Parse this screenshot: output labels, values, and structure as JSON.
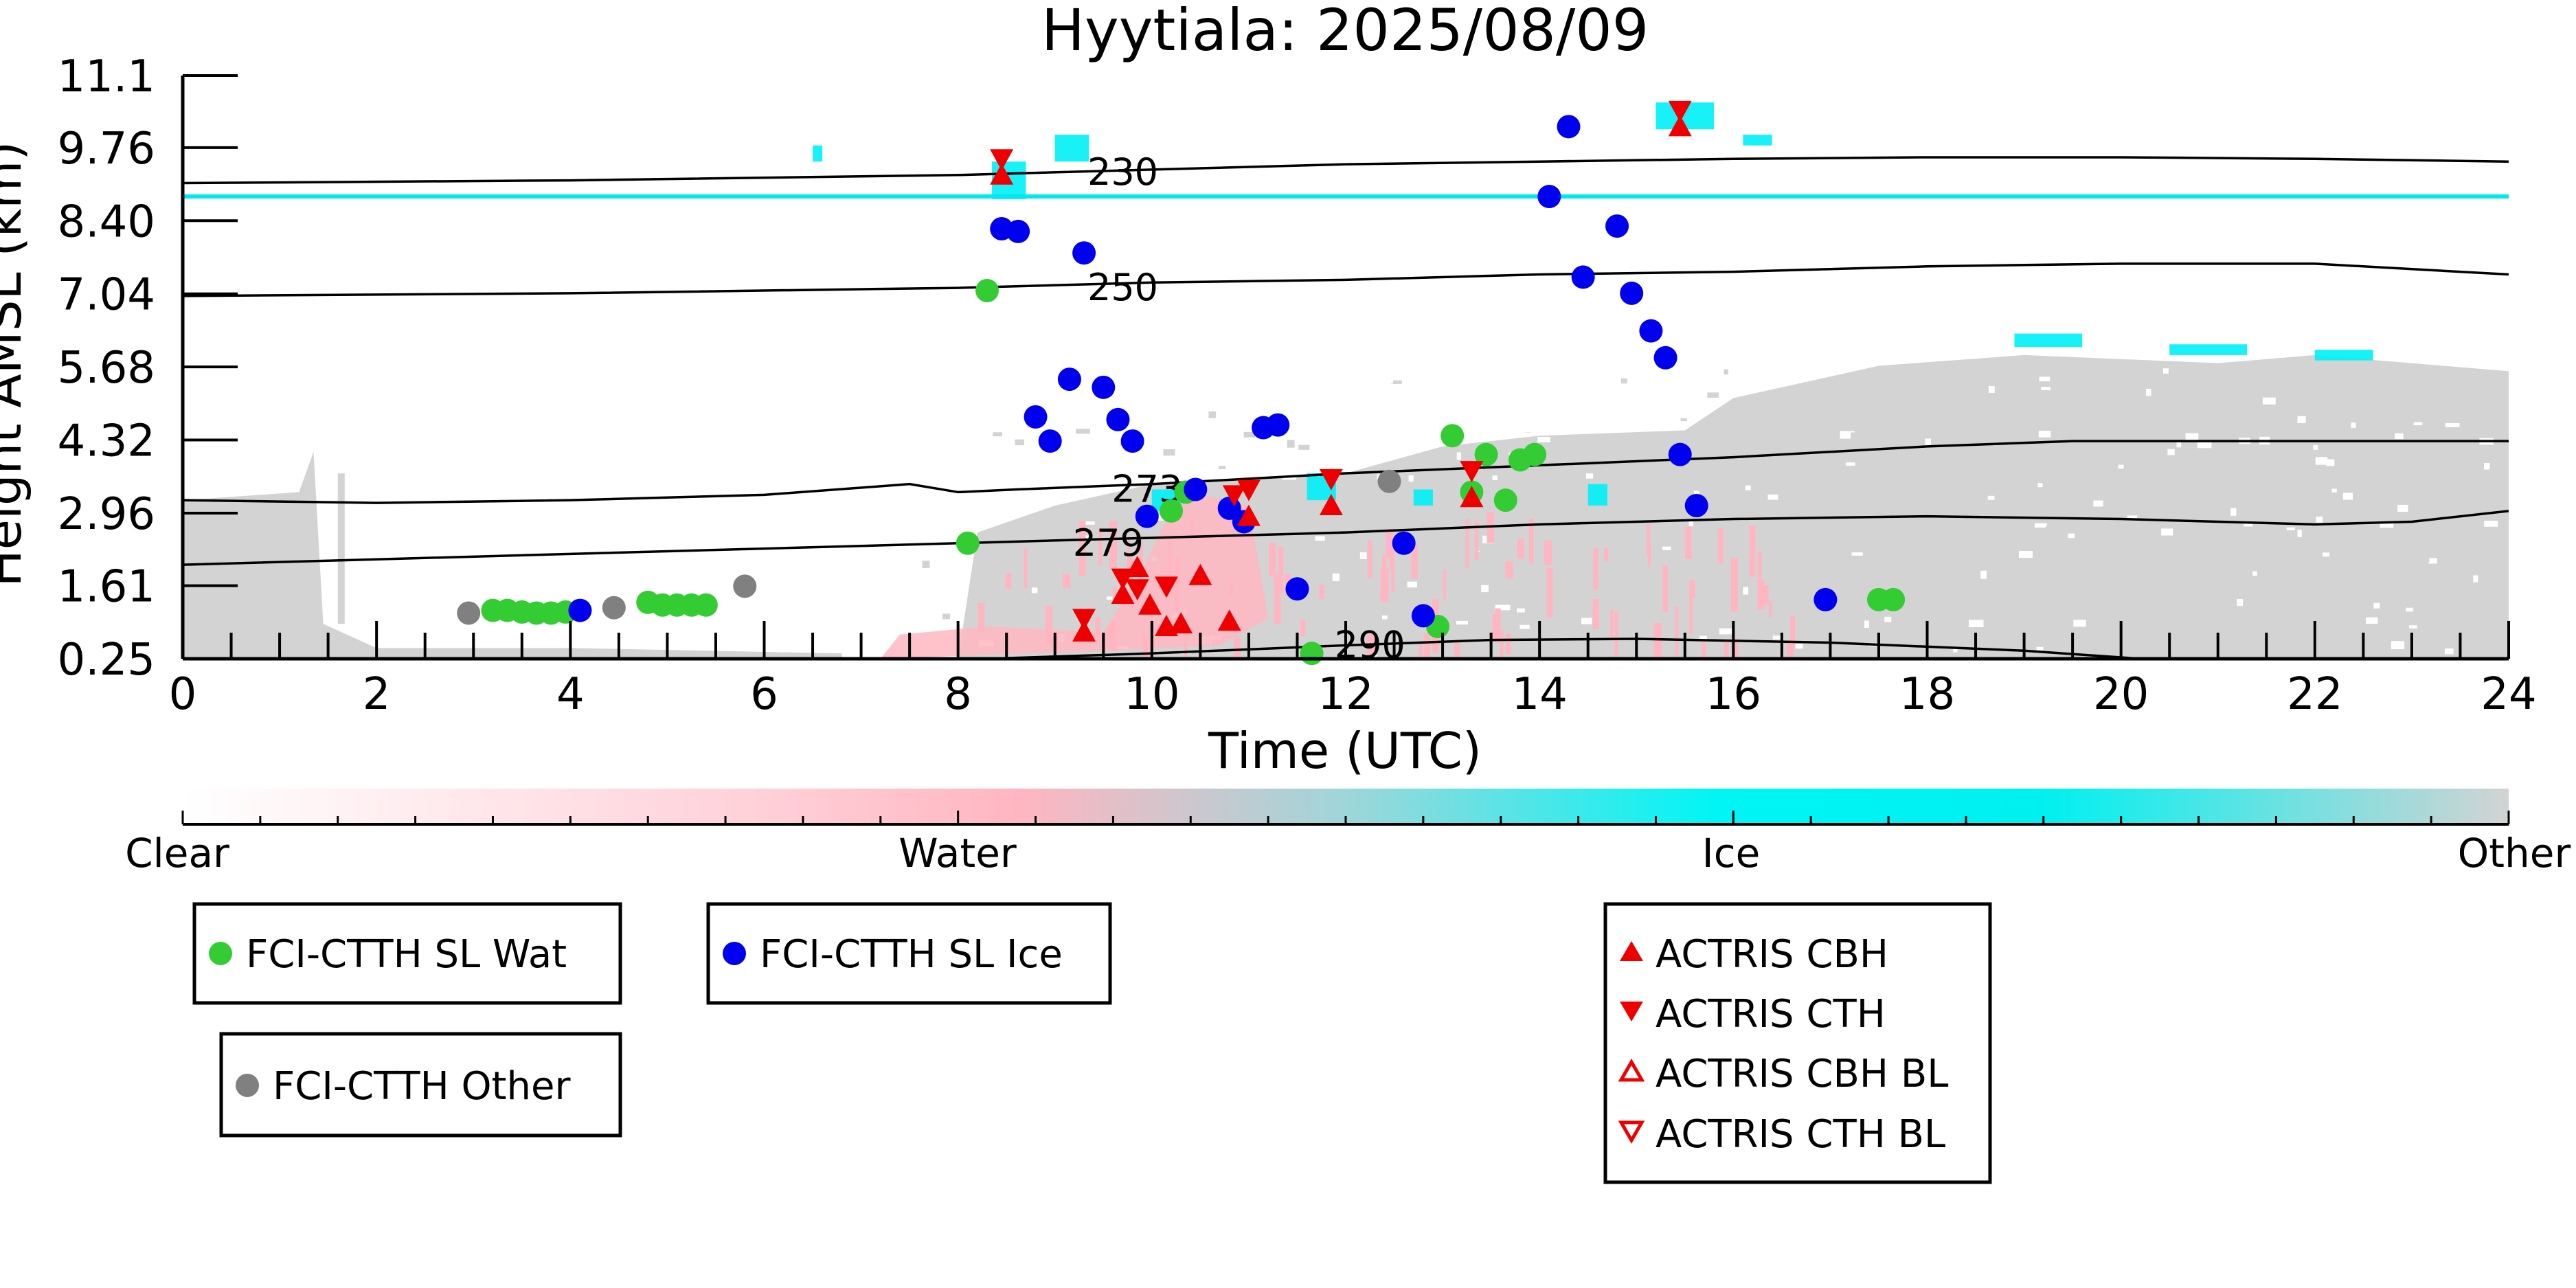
{
  "chart_data": {
    "type": "scatter",
    "title": "Hyytiala: 2025/08/09",
    "xlabel": "Time (UTC)",
    "ylabel": "Height AMSL (km)",
    "xlim": [
      0,
      24
    ],
    "ylim": [
      0.25,
      11.1
    ],
    "x_ticks": [
      "0",
      "2",
      "4",
      "6",
      "8",
      "10",
      "12",
      "14",
      "16",
      "18",
      "20",
      "22",
      "24"
    ],
    "y_ticks": [
      "0.25",
      "1.61",
      "2.96",
      "4.32",
      "5.68",
      "7.04",
      "8.40",
      "9.76",
      "11.1"
    ],
    "background": "cloud phase curtain (Clear / Water / Ice / Other)",
    "colorbar": {
      "labels": [
        "Clear",
        "Water",
        "Ice",
        "Other"
      ],
      "colors": [
        "#ffffff",
        "#ffb6c1",
        "#00f5f5",
        "#d3d3d3"
      ]
    },
    "contours": [
      {
        "label": "230",
        "x": [
          0,
          4,
          8,
          10,
          12,
          14,
          16,
          18,
          20,
          22,
          24
        ],
        "y": [
          9.1,
          9.15,
          9.25,
          9.35,
          9.45,
          9.5,
          9.55,
          9.58,
          9.58,
          9.55,
          9.5
        ]
      },
      {
        "label": "250",
        "x": [
          0,
          4,
          8,
          10,
          12,
          14,
          16,
          18,
          20,
          22,
          24
        ],
        "y": [
          7.0,
          7.05,
          7.15,
          7.25,
          7.3,
          7.4,
          7.45,
          7.55,
          7.6,
          7.6,
          7.4
        ]
      },
      {
        "label": "273",
        "x": [
          0,
          2,
          4,
          6,
          7.5,
          8,
          8.6,
          10,
          12,
          14,
          16,
          18,
          19.5,
          21,
          24
        ],
        "y": [
          3.2,
          3.15,
          3.2,
          3.3,
          3.5,
          3.35,
          3.4,
          3.5,
          3.7,
          3.85,
          4.0,
          4.2,
          4.3,
          4.3,
          4.3
        ]
      },
      {
        "label": "279",
        "x": [
          0,
          2,
          4,
          6,
          8,
          10,
          12,
          14,
          16,
          18,
          20,
          22,
          23,
          24
        ],
        "y": [
          2.0,
          2.1,
          2.2,
          2.3,
          2.4,
          2.5,
          2.6,
          2.75,
          2.85,
          2.9,
          2.85,
          2.75,
          2.8,
          3.0
        ]
      },
      {
        "label": "290",
        "x": [
          8.3,
          10,
          12,
          13.5,
          15,
          17,
          19,
          20.2
        ],
        "y": [
          0.25,
          0.35,
          0.5,
          0.6,
          0.62,
          0.55,
          0.4,
          0.25
        ]
      }
    ],
    "cyan_line": {
      "y": 8.85
    },
    "series": [
      {
        "name": "FCI-CTTH SL Wat",
        "color": "#33cc33",
        "marker": "circle",
        "x": [
          3.2,
          3.35,
          3.5,
          3.65,
          3.8,
          3.95,
          4.8,
          4.95,
          5.1,
          5.25,
          5.4,
          8.1,
          8.3,
          10.2,
          10.35,
          11.65,
          12.95,
          13.1,
          13.3,
          13.45,
          13.65,
          13.8,
          13.95,
          17.5,
          17.65
        ],
        "y": [
          1.15,
          1.15,
          1.12,
          1.1,
          1.1,
          1.12,
          1.3,
          1.25,
          1.25,
          1.25,
          1.25,
          2.4,
          7.1,
          3.0,
          3.35,
          0.35,
          0.85,
          4.4,
          3.35,
          4.05,
          3.2,
          3.95,
          4.05,
          1.35,
          1.35
        ]
      },
      {
        "name": "FCI-CTTH SL Ice",
        "color": "#0000ee",
        "marker": "circle",
        "x": [
          4.1,
          8.45,
          8.62,
          8.8,
          8.95,
          9.15,
          9.3,
          9.5,
          9.65,
          9.8,
          9.95,
          10.45,
          10.8,
          10.95,
          11.15,
          11.3,
          11.5,
          12.6,
          12.8,
          14.1,
          14.3,
          14.45,
          14.8,
          14.95,
          15.15,
          15.3,
          15.45,
          15.62,
          16.95
        ],
        "y": [
          1.15,
          8.25,
          8.2,
          4.75,
          4.3,
          5.45,
          7.8,
          5.3,
          4.7,
          4.3,
          2.9,
          3.4,
          3.05,
          2.8,
          4.55,
          4.6,
          1.55,
          2.4,
          1.05,
          8.85,
          10.15,
          7.35,
          8.3,
          7.05,
          6.35,
          5.85,
          4.05,
          3.1,
          1.35
        ]
      },
      {
        "name": "FCI-CTTH Other",
        "color": "#808080",
        "marker": "circle",
        "x": [
          2.95,
          4.45,
          5.8,
          12.45
        ],
        "y": [
          1.1,
          1.2,
          1.6,
          3.55
        ]
      },
      {
        "name": "ACTRIS CBH",
        "color": "#ee0000",
        "marker": "triangle-up",
        "x": [
          8.45,
          9.3,
          9.7,
          9.85,
          9.98,
          10.15,
          10.3,
          10.5,
          10.8,
          11.0,
          11.85,
          13.3,
          15.45
        ],
        "y": [
          9.25,
          0.75,
          1.45,
          1.95,
          1.25,
          0.85,
          0.9,
          1.8,
          0.95,
          2.9,
          3.1,
          3.25,
          10.15
        ]
      },
      {
        "name": "ACTRIS CTH",
        "color": "#ee0000",
        "marker": "triangle-down",
        "x": [
          8.45,
          9.3,
          9.7,
          9.85,
          10.15,
          10.85,
          11.0,
          11.85,
          13.3,
          15.45
        ],
        "y": [
          9.55,
          1.0,
          1.75,
          1.55,
          1.6,
          3.3,
          3.4,
          3.6,
          3.75,
          10.45
        ]
      },
      {
        "name": "ACTRIS CBH BL",
        "color": "#ee0000",
        "marker": "triangle-up-open",
        "x": [],
        "y": []
      },
      {
        "name": "ACTRIS CTH BL",
        "color": "#ee0000",
        "marker": "triangle-down-open",
        "x": [],
        "y": []
      }
    ]
  }
}
